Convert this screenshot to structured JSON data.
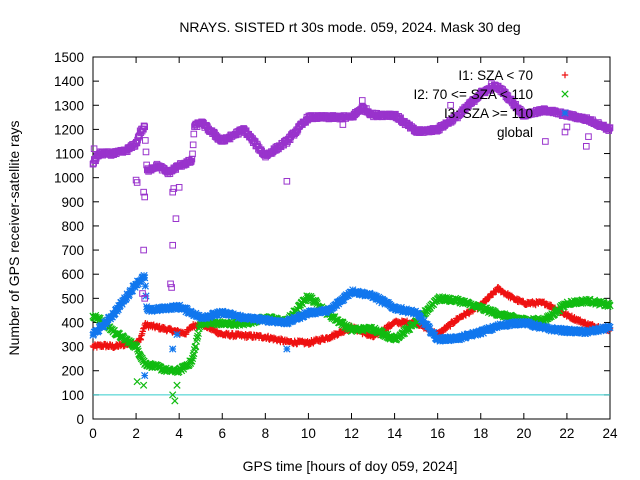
{
  "chart_data": {
    "type": "scatter",
    "title": "NRAYS. SISTED rt 30s mode. 059, 2024. Mask 30 deg",
    "xlabel": "GPS time [hours of doy 059, 2024]",
    "ylabel": "Number of GPS receiver-satellite rays",
    "xlim": [
      0,
      24
    ],
    "ylim": [
      0,
      1500
    ],
    "xticks": [
      0,
      2,
      4,
      6,
      8,
      10,
      12,
      14,
      16,
      18,
      20,
      22,
      24
    ],
    "yticks": [
      0,
      100,
      200,
      300,
      400,
      500,
      600,
      700,
      800,
      900,
      1000,
      1100,
      1200,
      1300,
      1400,
      1500
    ],
    "reference_line": {
      "y": 100,
      "color": "#33cccc"
    },
    "legend_position": "top-right",
    "series": [
      {
        "name": "I1: SZA < 70",
        "marker": "+",
        "color": "#ee1111",
        "anchors": [
          [
            0,
            300
          ],
          [
            0.5,
            305
          ],
          [
            1,
            300
          ],
          [
            1.5,
            310
          ],
          [
            2,
            315
          ],
          [
            2.2,
            330
          ],
          [
            2.4,
            390
          ],
          [
            3,
            380
          ],
          [
            3.5,
            370
          ],
          [
            4,
            360
          ],
          [
            4.3,
            355
          ],
          [
            4.6,
            385
          ],
          [
            5,
            395
          ],
          [
            6,
            350
          ],
          [
            7,
            345
          ],
          [
            8,
            340
          ],
          [
            9,
            320
          ],
          [
            10,
            315
          ],
          [
            11,
            340
          ],
          [
            12,
            380
          ],
          [
            13,
            340
          ],
          [
            14,
            400
          ],
          [
            15,
            400
          ],
          [
            16,
            350
          ],
          [
            17,
            420
          ],
          [
            18,
            470
          ],
          [
            18.8,
            540
          ],
          [
            19.5,
            500
          ],
          [
            20,
            480
          ],
          [
            21,
            480
          ],
          [
            22,
            430
          ],
          [
            23,
            390
          ],
          [
            24,
            370
          ]
        ],
        "outliers": []
      },
      {
        "name": "I2: 70 <= SZA < 110",
        "marker": "x",
        "color": "#11bb11",
        "anchors": [
          [
            0,
            430
          ],
          [
            0.5,
            400
          ],
          [
            1,
            360
          ],
          [
            1.5,
            330
          ],
          [
            2,
            300
          ],
          [
            2.4,
            230
          ],
          [
            3,
            215
          ],
          [
            3.5,
            200
          ],
          [
            4,
            200
          ],
          [
            4.6,
            240
          ],
          [
            5,
            400
          ],
          [
            6,
            395
          ],
          [
            7,
            395
          ],
          [
            8,
            420
          ],
          [
            9,
            405
          ],
          [
            10,
            510
          ],
          [
            10.5,
            470
          ],
          [
            11,
            430
          ],
          [
            12,
            370
          ],
          [
            13,
            375
          ],
          [
            14,
            330
          ],
          [
            15,
            400
          ],
          [
            16,
            500
          ],
          [
            17,
            490
          ],
          [
            18,
            460
          ],
          [
            19,
            430
          ],
          [
            20,
            410
          ],
          [
            21,
            410
          ],
          [
            22,
            480
          ],
          [
            23,
            490
          ],
          [
            24,
            470
          ]
        ],
        "outliers": [
          [
            2.05,
            155
          ],
          [
            2.35,
            140
          ],
          [
            3.8,
            75
          ],
          [
            3.7,
            100
          ],
          [
            3.9,
            140
          ]
        ]
      },
      {
        "name": "I3: SZA >= 110",
        "marker": "*",
        "color": "#1177ee",
        "anchors": [
          [
            0,
            350
          ],
          [
            0.5,
            390
          ],
          [
            1,
            440
          ],
          [
            1.5,
            500
          ],
          [
            2,
            560
          ],
          [
            2.4,
            590
          ],
          [
            2.5,
            450
          ],
          [
            3,
            455
          ],
          [
            4,
            465
          ],
          [
            4.6,
            440
          ],
          [
            5,
            420
          ],
          [
            6,
            440
          ],
          [
            7,
            420
          ],
          [
            8,
            410
          ],
          [
            9,
            400
          ],
          [
            10,
            440
          ],
          [
            11,
            450
          ],
          [
            12,
            530
          ],
          [
            13,
            510
          ],
          [
            14,
            460
          ],
          [
            15,
            440
          ],
          [
            16,
            330
          ],
          [
            17,
            335
          ],
          [
            18,
            360
          ],
          [
            19,
            390
          ],
          [
            20,
            400
          ],
          [
            21,
            375
          ],
          [
            22,
            365
          ],
          [
            23,
            360
          ],
          [
            24,
            380
          ]
        ],
        "outliers": [
          [
            2.4,
            180
          ],
          [
            3.7,
            290
          ],
          [
            3.9,
            350
          ],
          [
            9.0,
            290
          ]
        ]
      },
      {
        "name": "global",
        "marker": "square",
        "color": "#9933cc",
        "anchors": [
          [
            0,
            1060
          ],
          [
            0.3,
            1100
          ],
          [
            1,
            1100
          ],
          [
            1.5,
            1110
          ],
          [
            2,
            1140
          ],
          [
            2.2,
            1190
          ],
          [
            2.4,
            1210
          ],
          [
            2.5,
            1030
          ],
          [
            3,
            1050
          ],
          [
            3.5,
            1020
          ],
          [
            4,
            1050
          ],
          [
            4.6,
            1070
          ],
          [
            4.7,
            1210
          ],
          [
            5,
            1230
          ],
          [
            6,
            1150
          ],
          [
            7,
            1200
          ],
          [
            8,
            1090
          ],
          [
            9,
            1150
          ],
          [
            10,
            1250
          ],
          [
            11,
            1250
          ],
          [
            12,
            1250
          ],
          [
            12.5,
            1290
          ],
          [
            13,
            1260
          ],
          [
            14,
            1260
          ],
          [
            15,
            1190
          ],
          [
            16,
            1200
          ],
          [
            17,
            1260
          ],
          [
            18,
            1350
          ],
          [
            18.7,
            1380
          ],
          [
            19,
            1360
          ],
          [
            20,
            1260
          ],
          [
            21,
            1280
          ],
          [
            22,
            1260
          ],
          [
            23,
            1240
          ],
          [
            24,
            1200
          ]
        ],
        "outliers": [
          [
            0.05,
            1120
          ],
          [
            2.0,
            990
          ],
          [
            2.05,
            980
          ],
          [
            2.35,
            940
          ],
          [
            2.4,
            920
          ],
          [
            2.35,
            700
          ],
          [
            2.3,
            520
          ],
          [
            2.4,
            500
          ],
          [
            3.7,
            940
          ],
          [
            3.75,
            955
          ],
          [
            3.7,
            720
          ],
          [
            3.6,
            560
          ],
          [
            3.65,
            545
          ],
          [
            3.85,
            830
          ],
          [
            4.0,
            960
          ],
          [
            9.0,
            985
          ],
          [
            11.6,
            1220
          ],
          [
            12.5,
            1320
          ],
          [
            16.6,
            1300
          ],
          [
            18.5,
            1390
          ],
          [
            21,
            1150
          ],
          [
            22,
            1210
          ],
          [
            22.9,
            1130
          ],
          [
            23,
            1170
          ]
        ]
      }
    ]
  }
}
